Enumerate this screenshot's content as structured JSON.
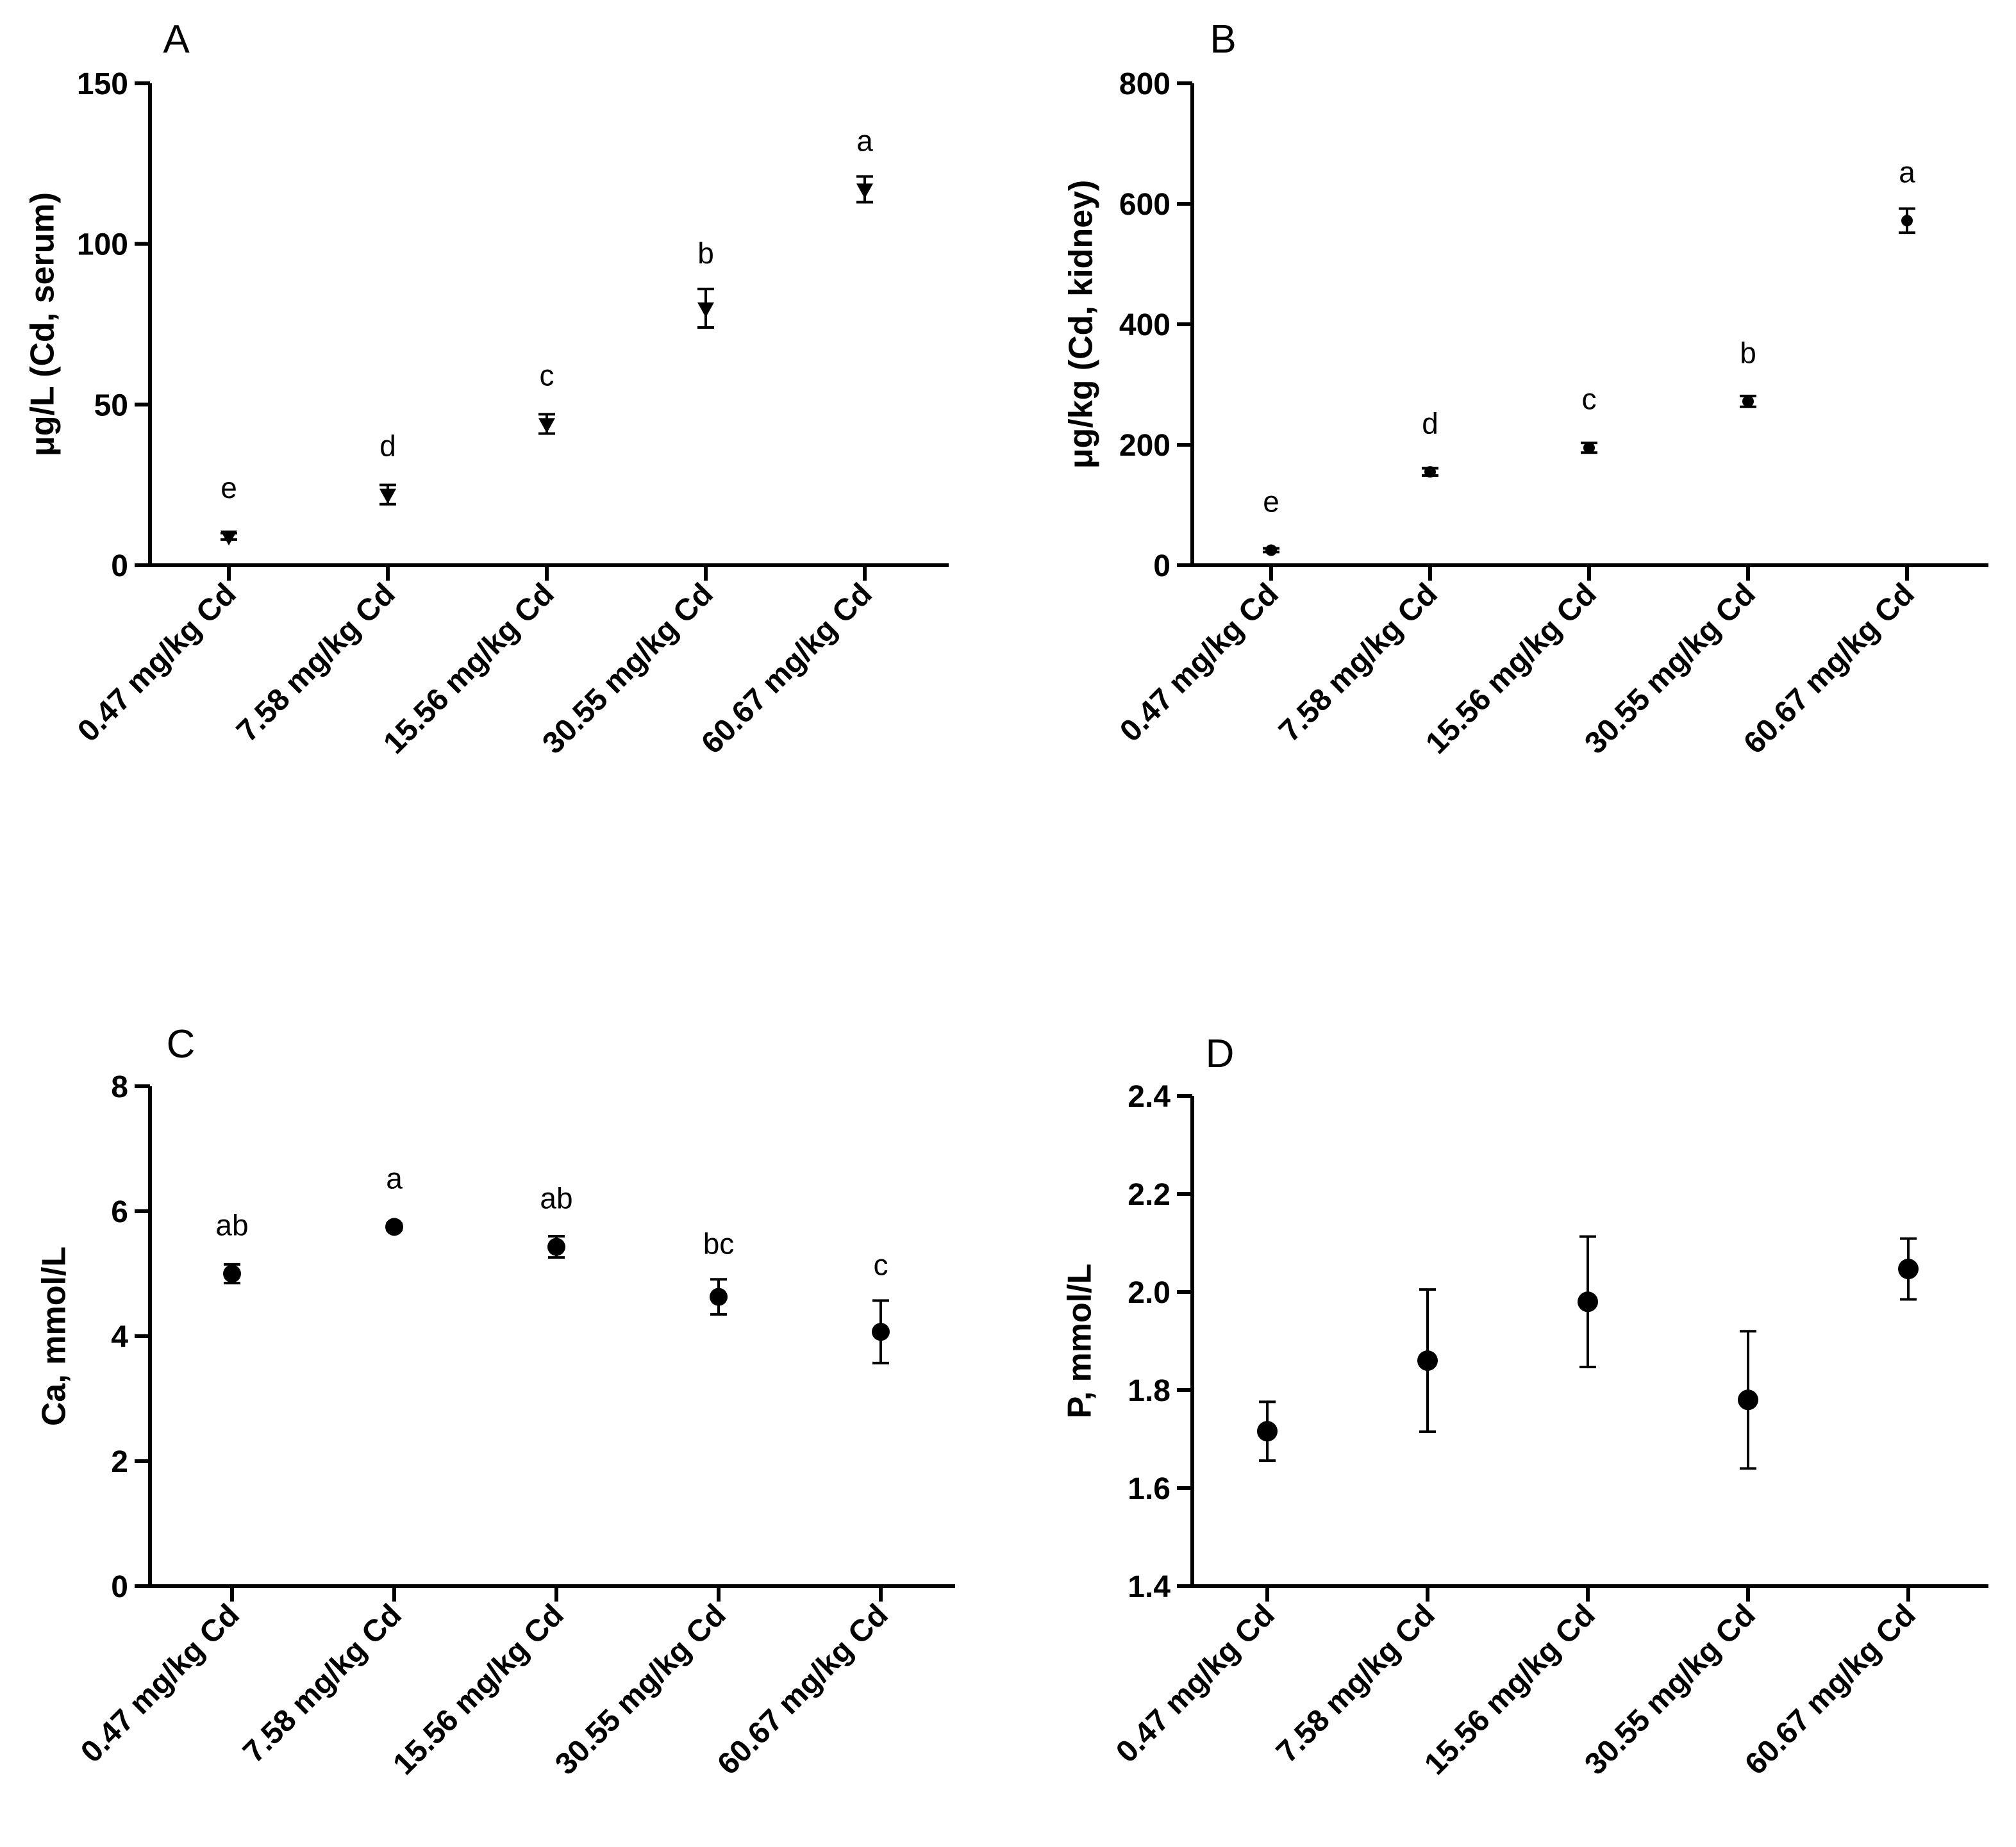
{
  "chart_data": [
    {
      "panel": "A",
      "type": "scatter",
      "marker": "triangle-down",
      "ylabel": "μg/L (Cd, serum)",
      "ylim": [
        0,
        150
      ],
      "yticks": [
        0,
        50,
        100,
        150
      ],
      "categories": [
        "0.47 mg/kg Cd",
        "7.58 mg/kg Cd",
        "15.56 mg/kg Cd",
        "30.55 mg/kg Cd",
        "60.67 mg/kg Cd"
      ],
      "values": [
        9,
        22,
        44,
        80,
        117
      ],
      "errors": [
        1,
        3,
        3,
        6,
        4
      ],
      "letters": [
        "e",
        "d",
        "c",
        "b",
        "a"
      ]
    },
    {
      "panel": "B",
      "type": "scatter",
      "marker": "circle-small",
      "ylabel": "μg/kg (Cd, kidney)",
      "ylim": [
        0,
        800
      ],
      "yticks": [
        0,
        200,
        400,
        600,
        800
      ],
      "categories": [
        "0.47 mg/kg Cd",
        "7.58 mg/kg Cd",
        "15.56 mg/kg Cd",
        "30.55 mg/kg Cd",
        "60.67 mg/kg Cd"
      ],
      "values": [
        25,
        155,
        195,
        272,
        572
      ],
      "errors": [
        3,
        6,
        8,
        9,
        20
      ],
      "letters": [
        "e",
        "d",
        "c",
        "b",
        "a"
      ]
    },
    {
      "panel": "C",
      "type": "scatter",
      "marker": "circle",
      "ylabel": "Ca, mmol/L",
      "ylim": [
        0,
        8
      ],
      "yticks": [
        0,
        2,
        4,
        6,
        8
      ],
      "categories": [
        "0.47 mg/kg Cd",
        "7.58 mg/kg Cd",
        "15.56 mg/kg Cd",
        "30.55 mg/kg Cd",
        "60.67 mg/kg Cd"
      ],
      "values": [
        5.0,
        5.75,
        5.43,
        4.63,
        4.07
      ],
      "errors": [
        0.15,
        0.05,
        0.17,
        0.28,
        0.5
      ],
      "letters": [
        "ab",
        "a",
        "ab",
        "bc",
        "c"
      ]
    },
    {
      "panel": "D",
      "type": "scatter",
      "marker": "circle",
      "ylabel": "P, mmol/L",
      "ylim": [
        1.4,
        2.4
      ],
      "yticks": [
        1.4,
        1.6,
        1.8,
        2.0,
        2.2,
        2.4
      ],
      "ytick_labels": [
        "1.4",
        "1.6",
        "1.8",
        "2.0",
        "2.2",
        "2.4"
      ],
      "categories": [
        "0.47 mg/kg Cd",
        "7.58 mg/kg Cd",
        "15.56 mg/kg Cd",
        "30.55 mg/kg Cd",
        "60.67 mg/kg Cd"
      ],
      "values": [
        1.716,
        1.86,
        1.98,
        1.78,
        2.047
      ],
      "errors": [
        0.06,
        0.145,
        0.133,
        0.14,
        0.062
      ],
      "letters": []
    }
  ]
}
